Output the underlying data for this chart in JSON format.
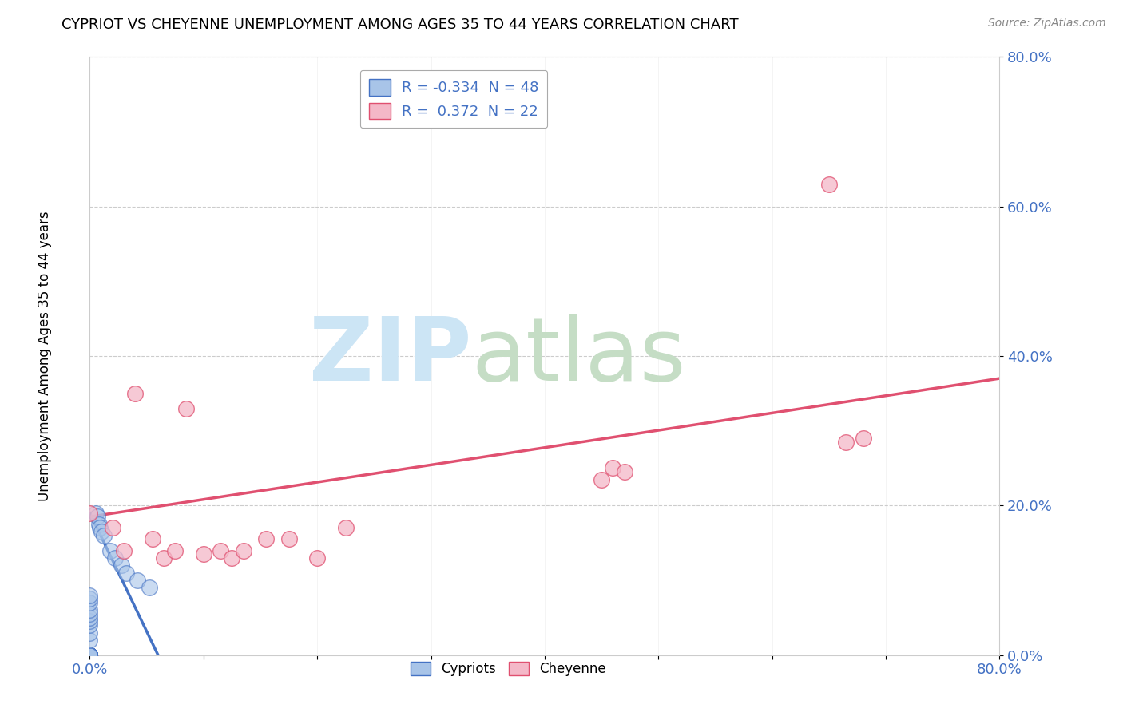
{
  "title": "CYPRIOT VS CHEYENNE UNEMPLOYMENT AMONG AGES 35 TO 44 YEARS CORRELATION CHART",
  "source": "Source: ZipAtlas.com",
  "ylabel": "Unemployment Among Ages 35 to 44 years",
  "cypriot_R": -0.334,
  "cypriot_N": 48,
  "cheyenne_R": 0.372,
  "cheyenne_N": 22,
  "cypriot_scatter_color": "#a8c4e8",
  "cheyenne_scatter_color": "#f4b8c8",
  "cypriot_trend_color": "#4472c4",
  "cheyenne_trend_color": "#e05070",
  "cypriot_x": [
    0.0,
    0.0,
    0.0,
    0.0,
    0.0,
    0.0,
    0.0,
    0.0,
    0.0,
    0.0,
    0.0,
    0.0,
    0.0,
    0.0,
    0.0,
    0.0,
    0.0,
    0.0,
    0.0,
    0.0,
    0.0,
    0.0,
    0.0,
    0.0,
    0.0,
    0.0,
    0.0,
    0.0,
    0.0,
    0.0,
    0.0,
    0.0,
    0.0,
    0.0,
    0.0,
    0.0,
    0.005,
    0.007,
    0.008,
    0.009,
    0.01,
    0.012,
    0.018,
    0.022,
    0.028,
    0.032,
    0.042,
    0.052
  ],
  "cypriot_y": [
    0.0,
    0.0,
    0.0,
    0.0,
    0.0,
    0.0,
    0.0,
    0.0,
    0.0,
    0.0,
    0.0,
    0.0,
    0.0,
    0.0,
    0.0,
    0.0,
    0.0,
    0.0,
    0.0,
    0.0,
    0.0,
    0.0,
    0.0,
    0.0,
    0.0,
    0.0,
    0.02,
    0.03,
    0.04,
    0.045,
    0.05,
    0.055,
    0.06,
    0.07,
    0.075,
    0.08,
    0.19,
    0.185,
    0.175,
    0.17,
    0.165,
    0.16,
    0.14,
    0.13,
    0.12,
    0.11,
    0.1,
    0.09
  ],
  "cheyenne_x": [
    0.0,
    0.02,
    0.03,
    0.04,
    0.055,
    0.065,
    0.075,
    0.085,
    0.1,
    0.115,
    0.125,
    0.135,
    0.155,
    0.175,
    0.2,
    0.225,
    0.45,
    0.46,
    0.47,
    0.65,
    0.665,
    0.68
  ],
  "cheyenne_y": [
    0.19,
    0.17,
    0.14,
    0.35,
    0.155,
    0.13,
    0.14,
    0.33,
    0.135,
    0.14,
    0.13,
    0.14,
    0.155,
    0.155,
    0.13,
    0.17,
    0.235,
    0.25,
    0.245,
    0.63,
    0.285,
    0.29
  ],
  "cypriot_trend_x0": 0.0,
  "cypriot_trend_y0": 0.19,
  "cypriot_trend_x1": 0.06,
  "cypriot_trend_y1": 0.0,
  "cheyenne_trend_x0": 0.0,
  "cheyenne_trend_y0": 0.185,
  "cheyenne_trend_x1": 0.8,
  "cheyenne_trend_y1": 0.37,
  "xlim": [
    0.0,
    0.8
  ],
  "ylim": [
    0.0,
    0.8
  ],
  "y_ticks": [
    0.0,
    0.2,
    0.4,
    0.6,
    0.8
  ],
  "y_tick_labels": [
    "0.0%",
    "20.0%",
    "40.0%",
    "60.0%",
    "80.0%"
  ],
  "x_tick_labels_show": [
    "0.0%",
    "80.0%"
  ],
  "tick_color": "#4472c4",
  "grid_color": "#cccccc",
  "watermark_zip_color": "#cce5f5",
  "watermark_atlas_color": "#c5ddc5"
}
